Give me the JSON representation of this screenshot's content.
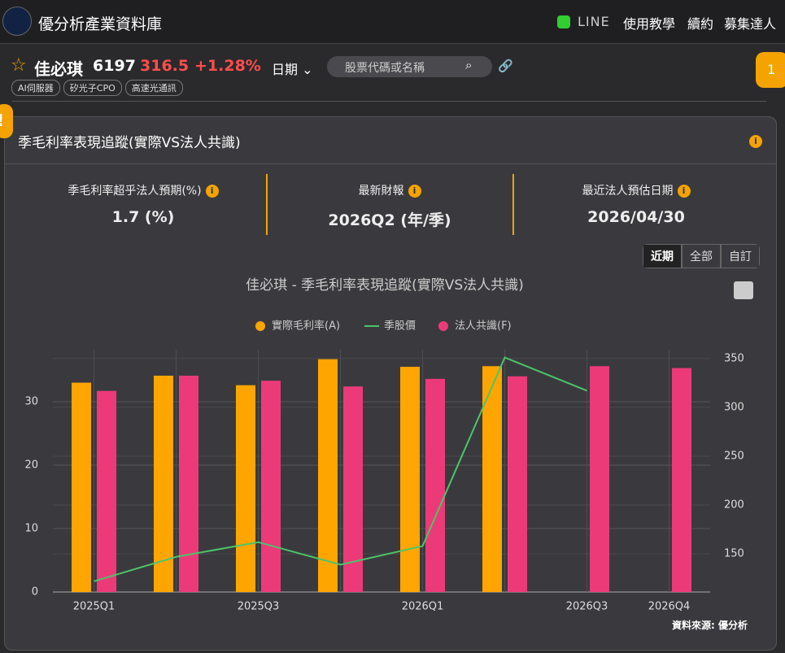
{
  "header": {
    "title": "優分析產業資料庫",
    "nav": [
      "LINE",
      "使用教學",
      "續約",
      "募集達人"
    ]
  },
  "stock": {
    "name": "佳必琪",
    "code": "6197",
    "price": "316.5",
    "change": "+1.28%",
    "date_label": "日期",
    "search_placeholder": "股票代碼或名稱",
    "tags": [
      "AI伺服器",
      "矽光子CPO",
      "高速光通訊"
    ],
    "badge": "1"
  },
  "card": {
    "title": "季毛利率表現追蹤(實際VS法人共識)",
    "stats": [
      {
        "label": "季毛利率超乎法人預期(%)",
        "value": "1.7 (%)"
      },
      {
        "label": "最新財報",
        "value": "2026Q2 (年/季)"
      },
      {
        "label": "最近法人預估日期",
        "value": "2026/04/30"
      }
    ],
    "range_buttons": [
      "近期",
      "全部",
      "自訂"
    ],
    "source": "資料來源: 優分析"
  },
  "chart_data": {
    "type": "bar",
    "title": "佳必琪 - 季毛利率表現追蹤(實際VS法人共識)",
    "categories": [
      "2025Q1",
      null,
      "2025Q3",
      null,
      "2026Q1",
      null,
      "2026Q3",
      "2026Q4"
    ],
    "series": [
      {
        "name": "實際毛利率(A)",
        "type": "bar",
        "color": "#ffa500",
        "values": [
          33.0,
          34.1,
          32.6,
          36.7,
          35.5,
          35.6,
          null,
          null
        ]
      },
      {
        "name": "季股價",
        "type": "line",
        "axis": "y2",
        "color": "#4cc46a",
        "values": [
          122,
          147,
          162,
          139,
          158,
          351,
          317,
          null
        ]
      },
      {
        "name": "法人共識(F)",
        "type": "bar",
        "color": "#ec3a78",
        "values": [
          31.7,
          34.1,
          33.3,
          32.4,
          33.6,
          34.0,
          35.6,
          35.3
        ]
      }
    ],
    "ylim": [
      0,
      38.2
    ],
    "yticks": [
      0,
      10,
      20,
      30
    ],
    "y2lim": [
      111,
      359
    ],
    "y2ticks": [
      150,
      200,
      250,
      300,
      350
    ],
    "grid": true
  }
}
